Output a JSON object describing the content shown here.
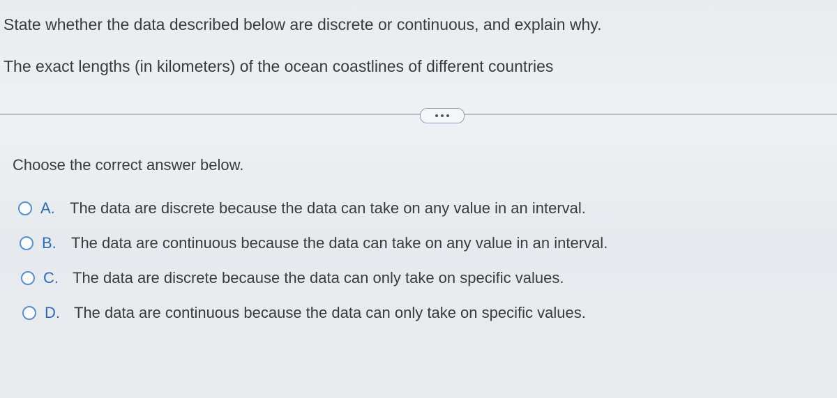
{
  "question": "State whether the data described below are discrete or continuous, and explain why.",
  "prompt": "The exact lengths (in kilometers) of the ocean coastlines of different countries",
  "instruction": "Choose the correct answer below.",
  "options": [
    {
      "label": "A.",
      "text": "The data are discrete because the data can take on any value in an interval."
    },
    {
      "label": "B.",
      "text": "The data are continuous because the data can take on any value in an interval."
    },
    {
      "label": "C.",
      "text": "The data are discrete because the data can only take on specific values."
    },
    {
      "label": "D.",
      "text": "The data are continuous because the data can only take on specific values."
    }
  ]
}
